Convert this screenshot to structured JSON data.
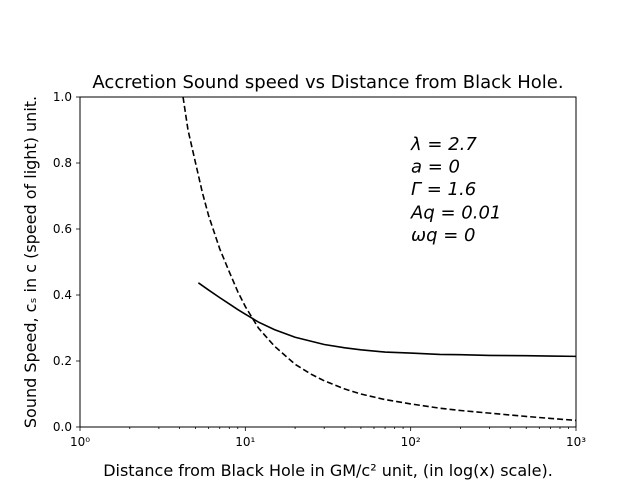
{
  "chart_data": {
    "type": "line",
    "title": "Accretion Sound speed vs Distance from Black Hole.",
    "xlabel": "Distance from Black Hole in GM/c² unit, (in log(x) scale).",
    "ylabel": "Sound Speed, cₛ in c (speed of light) unit.",
    "xscale": "log",
    "xlim": [
      1,
      1000
    ],
    "ylim": [
      0,
      1.0
    ],
    "grid": false,
    "x_ticks": [
      {
        "value": 1,
        "label": "10⁰"
      },
      {
        "value": 10,
        "label": "10¹"
      },
      {
        "value": 100,
        "label": "10²"
      },
      {
        "value": 1000,
        "label": "10³"
      }
    ],
    "y_ticks": [
      {
        "value": 0.0,
        "label": "0.0"
      },
      {
        "value": 0.2,
        "label": "0.2"
      },
      {
        "value": 0.4,
        "label": "0.4"
      },
      {
        "value": 0.6,
        "label": "0.6"
      },
      {
        "value": 0.8,
        "label": "0.8"
      },
      {
        "value": 1.0,
        "label": "1.0"
      }
    ],
    "annotations": [
      "λ = 2.7",
      "a = 0",
      "Γ = 1.6",
      "Aq = 0.01",
      "ωq = 0"
    ],
    "series": [
      {
        "style": "solid",
        "color": "#000000",
        "x": [
          5.2,
          6,
          7,
          8,
          9,
          10,
          12,
          15,
          20,
          30,
          40,
          50,
          70,
          100,
          150,
          200,
          300,
          500,
          700,
          1000
        ],
        "y": [
          0.437,
          0.415,
          0.392,
          0.373,
          0.356,
          0.342,
          0.318,
          0.295,
          0.272,
          0.25,
          0.24,
          0.234,
          0.227,
          0.224,
          0.22,
          0.219,
          0.217,
          0.216,
          0.215,
          0.214
        ]
      },
      {
        "style": "dashed",
        "color": "#000000",
        "x": [
          4.2,
          4.5,
          5,
          5.5,
          6,
          7,
          8,
          9,
          10,
          12,
          15,
          20,
          25,
          30,
          40,
          50,
          70,
          100,
          150,
          200,
          300,
          500,
          700,
          1000
        ],
        "y": [
          1.0,
          0.9,
          0.8,
          0.71,
          0.64,
          0.54,
          0.47,
          0.41,
          0.365,
          0.3,
          0.245,
          0.19,
          0.16,
          0.14,
          0.115,
          0.1,
          0.083,
          0.07,
          0.057,
          0.05,
          0.042,
          0.032,
          0.026,
          0.02
        ]
      }
    ]
  }
}
